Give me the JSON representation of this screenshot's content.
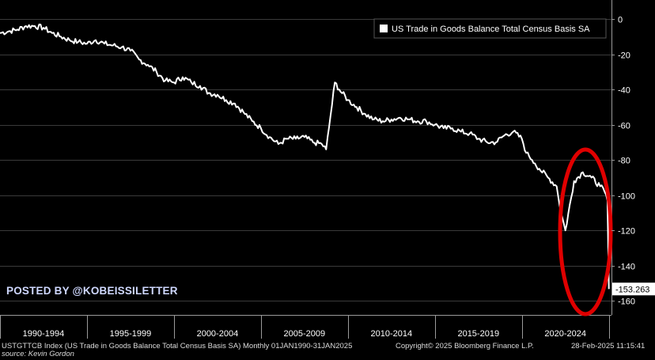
{
  "chart_data": {
    "type": "line",
    "title": "",
    "xlabel": "",
    "ylabel": "",
    "ylim": [
      -165,
      5
    ],
    "y_ticks": [
      0,
      -20,
      -40,
      -60,
      -80,
      -100,
      -120,
      -140,
      -160
    ],
    "x_period_labels": [
      "1990-1994",
      "1995-1999",
      "2000-2004",
      "2005-2009",
      "2010-2014",
      "2015-2019",
      "2020-2024"
    ],
    "grid": true,
    "legend_position": "top-right",
    "series": [
      {
        "name": "US Trade in Goods Balance Total Census Basis SA",
        "color": "#ffffff",
        "last_value_label": "-153.263",
        "x": [
          1990.0,
          1990.5,
          1991.0,
          1991.5,
          1992.0,
          1992.5,
          1993.0,
          1993.5,
          1994.0,
          1994.5,
          1995.0,
          1995.5,
          1996.0,
          1996.5,
          1997.0,
          1997.5,
          1998.0,
          1998.5,
          1999.0,
          1999.5,
          2000.0,
          2000.5,
          2001.0,
          2001.5,
          2002.0,
          2002.5,
          2003.0,
          2003.5,
          2004.0,
          2004.5,
          2005.0,
          2005.5,
          2006.0,
          2006.5,
          2007.0,
          2007.5,
          2008.0,
          2008.5,
          2008.75,
          2009.0,
          2009.25,
          2009.5,
          2010.0,
          2010.5,
          2011.0,
          2011.5,
          2012.0,
          2012.5,
          2013.0,
          2013.5,
          2014.0,
          2014.5,
          2015.0,
          2015.5,
          2016.0,
          2016.5,
          2017.0,
          2017.5,
          2018.0,
          2018.5,
          2019.0,
          2019.5,
          2020.0,
          2020.25,
          2020.42,
          2020.58,
          2020.75,
          2021.0,
          2021.5,
          2022.0,
          2022.25,
          2022.5,
          2023.0,
          2023.5,
          2024.0,
          2024.5,
          2024.75,
          2024.92,
          2025.0
        ],
        "y": [
          -8,
          -7,
          -6,
          -4,
          -4,
          -5,
          -8,
          -10,
          -12,
          -13,
          -14,
          -12,
          -14,
          -15,
          -16,
          -18,
          -23,
          -26,
          -30,
          -35,
          -36,
          -33,
          -36,
          -38,
          -42,
          -43,
          -46,
          -48,
          -53,
          -58,
          -62,
          -67,
          -71,
          -68,
          -68,
          -67,
          -70,
          -71,
          -74,
          -55,
          -36,
          -40,
          -46,
          -50,
          -54,
          -57,
          -58,
          -57,
          -56,
          -57,
          -58,
          -58,
          -60,
          -62,
          -62,
          -64,
          -65,
          -68,
          -70,
          -70,
          -66,
          -64,
          -68,
          -76,
          -78,
          -80,
          -82,
          -85,
          -90,
          -95,
          -110,
          -120,
          -92,
          -87,
          -90,
          -95,
          -98,
          -103,
          -153.263
        ]
      }
    ],
    "annotations": [
      "red ellipse highlighting the drop to -153.263 at the end of the series"
    ]
  },
  "legend_label": "US Trade in Goods Balance Total Census Basis SA",
  "watermark": "POSTED BY @KOBEISSILETTER",
  "footer": {
    "index_desc": "USTGTTCB Index (US Trade in Goods Balance Total Census Basis SA)  Monthly 01JAN1990-31JAN2025",
    "copyright": "Copyright© 2025 Bloomberg Finance L.P.",
    "timestamp": "28-Feb-2025 11:15:41",
    "source": "source: Kevin Gordon"
  },
  "colors": {
    "background": "#000000",
    "line": "#ffffff",
    "highlight": "#e00000",
    "grid": "#3a3a3a"
  }
}
